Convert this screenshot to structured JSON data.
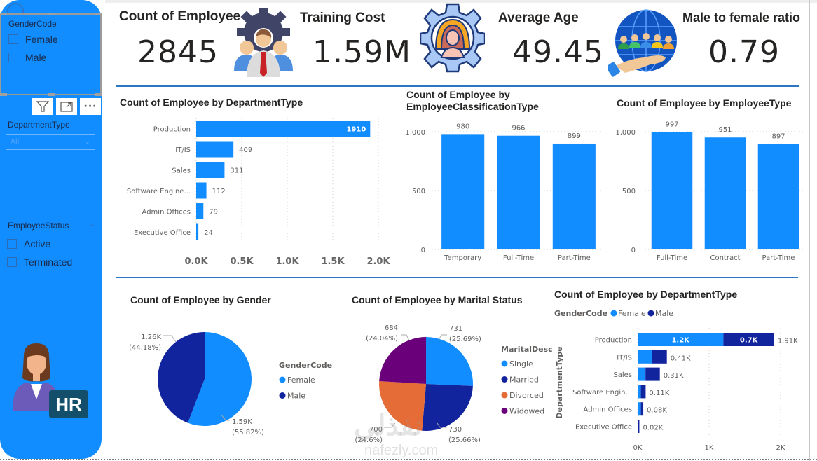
{
  "colors": {
    "accent": "#118dff",
    "dark_blue": "#12239e",
    "orange": "#e66c37",
    "purple": "#6b007b",
    "divider": "#2b77c4"
  },
  "sidebar": {
    "gender_slicer": {
      "title": "GenderCode",
      "options": [
        "Female",
        "Male"
      ]
    },
    "visual_header": {
      "filter_icon": "filter-icon",
      "focus_icon": "focus-mode-icon",
      "more_icon": "more-options-icon"
    },
    "department_slicer": {
      "title": "DepartmentType",
      "selected": "All"
    },
    "status_slicer": {
      "title": "EmployeeStatus",
      "options": [
        "Active",
        "Terminated"
      ]
    },
    "hr_badge": "HR"
  },
  "kpis": [
    {
      "label": "Count of Employee",
      "value": "2845",
      "icon": "team-gear-icon"
    },
    {
      "label": "Training Cost",
      "value": "1.59M",
      "icon": "employee-gear-icon"
    },
    {
      "label": "Average Age",
      "value": "49.45",
      "icon": "person-gear-icon"
    },
    {
      "label": "Male to female ratio",
      "value": "0.79",
      "icon": "globe-hand-people-icon"
    }
  ],
  "watermark": "nafezly.com",
  "chart_data": [
    {
      "type": "bar",
      "orientation": "horizontal",
      "title": "Count of Employee by DepartmentType",
      "categories": [
        "Production",
        "IT/IS",
        "Sales",
        "Software Engine...",
        "Admin Offices",
        "Executive Office"
      ],
      "values": [
        1910,
        409,
        311,
        112,
        79,
        24
      ],
      "data_labels": [
        "1910",
        "409",
        "311",
        "112",
        "79",
        "24"
      ],
      "xlim": [
        0,
        2000
      ],
      "xticks": [
        0,
        500,
        1000,
        1500,
        2000
      ],
      "xtick_labels": [
        "0.0K",
        "0.5K",
        "1.0K",
        "1.5K",
        "2.0K"
      ],
      "grid": true
    },
    {
      "type": "bar",
      "orientation": "vertical",
      "title": "Count of Employee by EmployeeClassificationType",
      "categories": [
        "Temporary",
        "Full-Time",
        "Part-Time"
      ],
      "values": [
        980,
        966,
        899
      ],
      "ylim": [
        0,
        1000
      ],
      "yticks": [
        0,
        500,
        1000
      ],
      "ytick_labels": [
        "0",
        "500",
        "1,000"
      ],
      "grid": true
    },
    {
      "type": "bar",
      "orientation": "vertical",
      "title": "Count of Employee by EmployeeType",
      "categories": [
        "Full-Time",
        "Contract",
        "Part-Time"
      ],
      "values": [
        997,
        951,
        897
      ],
      "ylim": [
        0,
        1000
      ],
      "yticks": [
        0,
        500,
        1000
      ],
      "ytick_labels": [
        "0",
        "500",
        "1,000"
      ],
      "grid": true
    },
    {
      "type": "pie",
      "title": "Count of Employee by Gender",
      "legend_title": "GenderCode",
      "legend_position": "right",
      "labels": [
        "Female",
        "Male"
      ],
      "values": [
        1588,
        1257
      ],
      "value_labels": [
        "1.59K",
        "1.26K"
      ],
      "percent_labels": [
        "(55.82%)",
        "(44.18%)"
      ]
    },
    {
      "type": "pie",
      "title": "Count of Employee by Marital Status",
      "legend_title": "MaritalDesc",
      "legend_position": "right",
      "labels": [
        "Single",
        "Married",
        "Divorced",
        "Widowed"
      ],
      "values": [
        731,
        730,
        700,
        684
      ],
      "value_labels": [
        "731",
        "730",
        "700",
        "684"
      ],
      "percent_labels": [
        "(25.69%)",
        "(25.66%)",
        "(24.6%)",
        "(24.04%)"
      ]
    },
    {
      "type": "bar",
      "orientation": "horizontal",
      "stacked": true,
      "title": "Count of Employee by DepartmentType",
      "legend_title": "GenderCode",
      "legend_position": "top-left",
      "ylabel": "DepartmentType",
      "categories": [
        "Production",
        "IT/IS",
        "Sales",
        "Software Engin...",
        "Admin Offices",
        "Executive Office"
      ],
      "series": [
        {
          "name": "Female",
          "values": [
            1200,
            200,
            110,
            45,
            45,
            5
          ],
          "labels": [
            "1.2K",
            "",
            "",
            "",
            "",
            ""
          ]
        },
        {
          "name": "Male",
          "values": [
            710,
            209,
            201,
            67,
            34,
            19
          ],
          "labels": [
            "0.7K",
            "",
            "",
            "",
            "",
            ""
          ]
        }
      ],
      "total_labels": [
        "1.91K",
        "0.41K",
        "0.31K",
        "0.11K",
        "0.08K",
        "0.02K"
      ],
      "xlim": [
        0,
        2000
      ],
      "xticks": [
        0,
        1000,
        2000
      ],
      "xtick_labels": [
        "0K",
        "1K",
        "2K"
      ],
      "grid": true
    }
  ]
}
